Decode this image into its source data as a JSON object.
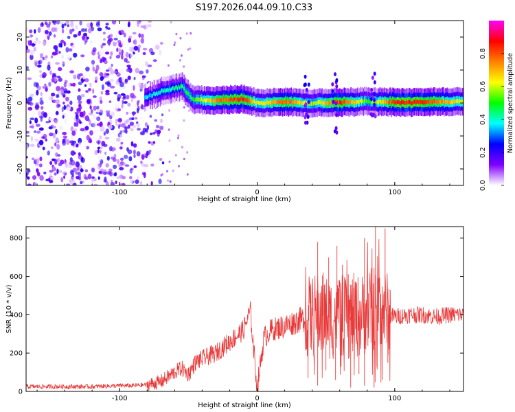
{
  "title": "S197.2026.044.09.10.C33",
  "chart_data": [
    {
      "type": "heatmap",
      "xlabel": "Height of straight line (km)",
      "ylabel": "Frequency (Hz)",
      "xlim": [
        -168,
        150
      ],
      "ylim": [
        -25,
        25
      ],
      "xticks": [
        -100,
        0,
        100
      ],
      "yticks": [
        -20,
        -10,
        0,
        10,
        20
      ],
      "colorbar": {
        "label": "Normalized spectral amplitude",
        "range": [
          0,
          1
        ],
        "ticks": [
          0.0,
          0.2,
          0.4,
          0.6,
          0.8
        ],
        "colormap": [
          "#ffffff",
          "#8000ff",
          "#0000ff",
          "#00ffff",
          "#00ff00",
          "#ffff00",
          "#ff8000",
          "#ff0000",
          "#ff00ff"
        ]
      },
      "noise_region": {
        "x": [
          -168,
          -72
        ],
        "y": [
          -25,
          25
        ],
        "amplitude": 0.15
      },
      "signal_track": [
        {
          "x": -82,
          "y": 1.5,
          "amplitude": 0.35
        },
        {
          "x": -70,
          "y": 3.5,
          "amplitude": 0.4
        },
        {
          "x": -55,
          "y": 5,
          "amplitude": 0.45
        },
        {
          "x": -47,
          "y": 1,
          "amplitude": 0.5
        },
        {
          "x": -30,
          "y": 0.8,
          "amplitude": 0.75
        },
        {
          "x": -10,
          "y": 1.2,
          "amplitude": 0.85
        },
        {
          "x": 0,
          "y": 0,
          "amplitude": 0.6
        },
        {
          "x": 20,
          "y": 0.3,
          "amplitude": 0.8
        },
        {
          "x": 40,
          "y": 0,
          "amplitude": 0.55
        },
        {
          "x": 60,
          "y": 0.2,
          "amplitude": 0.85
        },
        {
          "x": 80,
          "y": 0.5,
          "amplitude": 0.5
        },
        {
          "x": 100,
          "y": 0.2,
          "amplitude": 0.85
        },
        {
          "x": 120,
          "y": 0.2,
          "amplitude": 0.85
        },
        {
          "x": 150,
          "y": 0.5,
          "amplitude": 0.6
        }
      ]
    },
    {
      "type": "line",
      "xlabel": "Height of straight line (km)",
      "ylabel": "SNR (10 * v/v)",
      "xlim": [
        -168,
        150
      ],
      "ylim": [
        0,
        860
      ],
      "xticks": [
        -100,
        0,
        100
      ],
      "yticks": [
        0,
        200,
        400,
        600,
        800
      ],
      "color": "#e83a3a",
      "series": [
        {
          "x": [
            -168,
            -140,
            -120,
            -100,
            -90,
            -80,
            -70,
            -60,
            -55,
            -50,
            -45,
            -40,
            -30,
            -20,
            -10,
            -5,
            0,
            5,
            10,
            20,
            30,
            35,
            40,
            45,
            50,
            55,
            60,
            65,
            70,
            75,
            80,
            85,
            90,
            95,
            100,
            110,
            120,
            130,
            140,
            150
          ],
          "y": [
            25,
            25,
            25,
            30,
            30,
            35,
            50,
            100,
            120,
            90,
            150,
            170,
            200,
            260,
            320,
            420,
            20,
            280,
            320,
            340,
            370,
            380,
            390,
            400,
            390,
            380,
            410,
            370,
            400,
            390,
            420,
            430,
            450,
            400,
            390,
            400,
            400,
            390,
            400,
            400
          ]
        }
      ],
      "extremes": {
        "peaks": [
          {
            "x": 44,
            "y": 780
          },
          {
            "x": 58,
            "y": 760
          },
          {
            "x": 62,
            "y": 660
          },
          {
            "x": 78,
            "y": 800
          },
          {
            "x": 86,
            "y": 860
          },
          {
            "x": 93,
            "y": 850
          },
          {
            "x": 48,
            "y": 620
          },
          {
            "x": 70,
            "y": 540
          },
          {
            "x": 52,
            "y": 700
          }
        ],
        "troughs": [
          {
            "x": 37,
            "y": 70
          },
          {
            "x": 44,
            "y": 30
          },
          {
            "x": 50,
            "y": 110
          },
          {
            "x": 57,
            "y": 60
          },
          {
            "x": 61,
            "y": 130
          },
          {
            "x": 68,
            "y": 20
          },
          {
            "x": 74,
            "y": 90
          },
          {
            "x": 78,
            "y": 30
          },
          {
            "x": 85,
            "y": 20
          },
          {
            "x": 91,
            "y": 60
          },
          {
            "x": 95,
            "y": 150
          }
        ]
      }
    }
  ]
}
